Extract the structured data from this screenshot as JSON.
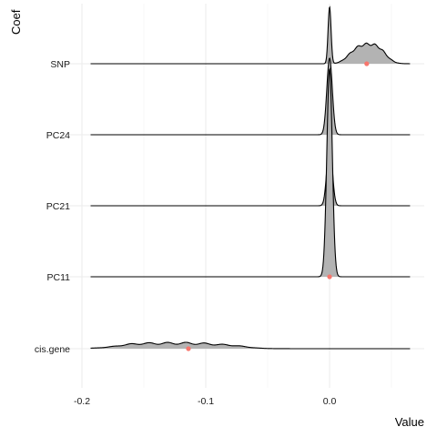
{
  "chart_data": {
    "type": "ridgeline",
    "xlabel": "Value",
    "ylabel": "Coef",
    "xlim": [
      -0.2,
      0.07
    ],
    "x_ticks": [
      -0.2,
      -0.1,
      0.0
    ],
    "x_tick_labels": [
      "-0.2",
      "-0.1",
      "0.0"
    ],
    "grid": true,
    "fill_color": "#b3b3b3",
    "line_color": "#000000",
    "point_color": "#f8766d",
    "categories": [
      "cis.gene",
      "PC11",
      "PC21",
      "PC24",
      "SNP"
    ],
    "series": [
      {
        "label": "cis.gene",
        "point_value": -0.114,
        "range": [
          -0.193,
          0.065
        ]
      },
      {
        "label": "PC11",
        "point_value": 0.0,
        "range": [
          -0.193,
          0.065
        ]
      },
      {
        "label": "PC21",
        "point_value": 0.0,
        "range": [
          -0.193,
          0.065
        ]
      },
      {
        "label": "PC24",
        "point_value": 0.0,
        "range": [
          -0.193,
          0.065
        ]
      },
      {
        "label": "SNP",
        "point_value": 0.03,
        "range": [
          -0.193,
          0.065
        ]
      }
    ]
  }
}
